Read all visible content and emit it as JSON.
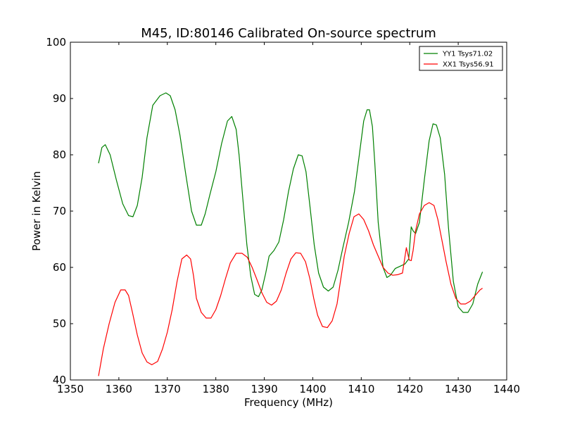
{
  "chart_data": {
    "type": "line",
    "title": "M45, ID:80146 Calibrated On-source spectrum",
    "xlabel": "Frequency (MHz)",
    "ylabel": "Power in Kelvin",
    "xlim": [
      1350,
      1440
    ],
    "ylim": [
      40,
      100
    ],
    "xticks": [
      1350,
      1360,
      1370,
      1380,
      1390,
      1400,
      1410,
      1420,
      1430,
      1440
    ],
    "yticks": [
      40,
      50,
      60,
      70,
      80,
      90,
      100
    ],
    "xtick_labels": [
      "1350",
      "1360",
      "1370",
      "1380",
      "1390",
      "1400",
      "1410",
      "1420",
      "1430",
      "1440"
    ],
    "ytick_labels": [
      "40",
      "50",
      "60",
      "70",
      "80",
      "90",
      "100"
    ],
    "grid": false,
    "legend_position": "top-right",
    "series": [
      {
        "name": "YY1 Tsys71.02",
        "color": "#008000",
        "x": [
          1355.8,
          1356.5,
          1357.2,
          1358.2,
          1359.5,
          1360.8,
          1362.0,
          1362.9,
          1363.8,
          1364.8,
          1365.8,
          1367.0,
          1368.5,
          1369.7,
          1370.6,
          1371.6,
          1372.6,
          1373.8,
          1375.0,
          1376.0,
          1377.0,
          1377.8,
          1378.8,
          1380.0,
          1381.2,
          1382.4,
          1383.3,
          1384.2,
          1384.8,
          1385.6,
          1386.4,
          1387.2,
          1388.0,
          1388.8,
          1389.5,
          1390.3,
          1391.0,
          1392.0,
          1393.0,
          1394.0,
          1395.0,
          1396.0,
          1397.0,
          1397.8,
          1398.6,
          1399.4,
          1400.3,
          1401.2,
          1402.2,
          1403.2,
          1404.2,
          1405.2,
          1406.2,
          1407.4,
          1408.6,
          1409.6,
          1410.5,
          1411.2,
          1411.7,
          1412.3,
          1412.8,
          1413.5,
          1414.5,
          1415.3,
          1416.0,
          1417.0,
          1418.0,
          1419.0,
          1419.8,
          1420.3,
          1420.7,
          1421.2,
          1422.0,
          1423.0,
          1424.0,
          1424.8,
          1425.5,
          1426.3,
          1427.2,
          1428.0,
          1429.0,
          1430.0,
          1431.0,
          1432.0,
          1433.0,
          1434.0,
          1435.0
        ],
        "y": [
          78.5,
          81.3,
          81.8,
          80.0,
          75.5,
          71.3,
          69.2,
          69.0,
          71.0,
          76.0,
          83.0,
          88.8,
          90.5,
          91.0,
          90.5,
          88.0,
          83.5,
          76.5,
          70.0,
          67.5,
          67.5,
          69.5,
          73.0,
          77.0,
          82.0,
          86.0,
          86.8,
          84.5,
          80.0,
          72.0,
          64.0,
          58.5,
          55.2,
          54.8,
          56.0,
          59.0,
          62.0,
          63.0,
          64.5,
          68.5,
          73.5,
          77.5,
          80.0,
          79.8,
          77.0,
          71.0,
          64.0,
          59.0,
          56.5,
          55.8,
          56.5,
          59.5,
          63.5,
          68.0,
          73.5,
          80.0,
          86.0,
          88.0,
          88.0,
          85.0,
          78.5,
          68.0,
          60.0,
          58.2,
          58.6,
          59.8,
          60.2,
          60.6,
          61.5,
          67.2,
          66.5,
          66.0,
          68.0,
          75.5,
          82.5,
          85.5,
          85.3,
          83.0,
          76.5,
          67.0,
          57.5,
          53.0,
          52.0,
          52.0,
          53.5,
          57.0,
          59.2
        ]
      },
      {
        "name": "XX1 Tsys56.91",
        "color": "#ff0000",
        "x": [
          1355.8,
          1356.8,
          1358.0,
          1359.2,
          1360.4,
          1361.3,
          1362.0,
          1362.8,
          1363.8,
          1364.8,
          1365.8,
          1366.8,
          1368.0,
          1369.0,
          1370.0,
          1371.0,
          1372.0,
          1373.0,
          1374.0,
          1374.8,
          1375.4,
          1376.0,
          1377.0,
          1378.0,
          1379.0,
          1380.0,
          1381.0,
          1382.0,
          1383.0,
          1384.2,
          1385.4,
          1386.5,
          1387.5,
          1388.5,
          1389.5,
          1390.5,
          1391.5,
          1392.5,
          1393.5,
          1394.5,
          1395.5,
          1396.5,
          1397.5,
          1398.5,
          1399.4,
          1400.2,
          1401.0,
          1402.0,
          1403.0,
          1404.0,
          1405.0,
          1405.7,
          1406.5,
          1407.5,
          1408.5,
          1409.5,
          1410.5,
          1411.5,
          1412.5,
          1413.5,
          1414.5,
          1415.5,
          1416.5,
          1417.5,
          1418.5,
          1419.3,
          1419.9,
          1420.3,
          1420.7,
          1421.2,
          1422.0,
          1423.0,
          1424.0,
          1425.0,
          1425.8,
          1426.6,
          1427.5,
          1428.5,
          1429.5,
          1430.5,
          1431.5,
          1432.5,
          1433.5,
          1434.5,
          1435.0
        ],
        "y": [
          40.7,
          45.5,
          50.0,
          53.8,
          56.0,
          56.0,
          55.0,
          52.0,
          48.0,
          44.8,
          43.2,
          42.7,
          43.3,
          45.5,
          48.5,
          52.5,
          57.5,
          61.5,
          62.2,
          61.5,
          58.5,
          54.5,
          52.0,
          51.0,
          51.0,
          52.5,
          55.0,
          58.0,
          60.8,
          62.5,
          62.5,
          61.8,
          60.0,
          57.8,
          55.5,
          53.8,
          53.3,
          54.0,
          56.0,
          59.0,
          61.5,
          62.6,
          62.5,
          61.0,
          58.0,
          54.5,
          51.5,
          49.5,
          49.3,
          50.5,
          53.5,
          57.5,
          62.0,
          66.0,
          69.0,
          69.5,
          68.5,
          66.5,
          64.0,
          62.0,
          60.0,
          59.0,
          58.6,
          58.7,
          59.0,
          63.5,
          61.3,
          61.2,
          63.0,
          66.5,
          69.5,
          71.0,
          71.5,
          71.0,
          68.5,
          65.0,
          61.0,
          57.0,
          54.5,
          53.5,
          53.5,
          54.0,
          55.0,
          56.0,
          56.3
        ]
      }
    ]
  }
}
